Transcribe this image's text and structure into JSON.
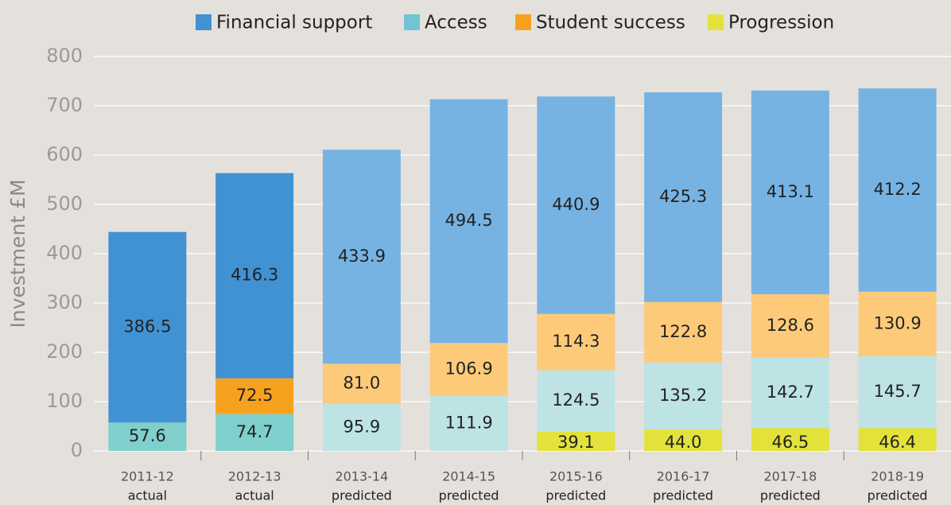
{
  "chart_data": {
    "type": "stacked_bar",
    "y_label": "Investment £M",
    "categories": [
      [
        "2011-12",
        "actual"
      ],
      [
        "2012-13",
        "actual"
      ],
      [
        "2013-14",
        "predicted"
      ],
      [
        "2014-15",
        "predicted"
      ],
      [
        "2015-16",
        "predicted"
      ],
      [
        "2016-17",
        "predicted"
      ],
      [
        "2017-18",
        "predicted"
      ],
      [
        "2018-19",
        "predicted"
      ]
    ],
    "series": [
      {
        "name": "Financial support",
        "color": "#4192d3",
        "bar_colors": [
          "#4192d3",
          "#4192d3",
          "#76b3e3",
          "#76b3e3",
          "#76b3e3",
          "#76b3e3",
          "#76b3e3",
          "#76b3e3"
        ],
        "values": [
          386.5,
          416.3,
          433.9,
          494.5,
          440.9,
          425.3,
          413.1,
          412.2
        ],
        "value_labels": [
          "386.5",
          "416.3",
          "433.9",
          "494.5",
          "440.9",
          "425.3",
          "413.1",
          "412.2"
        ]
      },
      {
        "name": "Access",
        "color": "#72c3d3",
        "bar_colors": [
          "#7fd0cc",
          "#7fd0cc",
          "#bde3e5",
          "#bde3e5",
          "#bde3e5",
          "#bde3e5",
          "#bde3e5",
          "#bde3e5"
        ],
        "values": [
          57.6,
          74.7,
          95.9,
          111.9,
          124.5,
          135.2,
          142.7,
          145.7
        ],
        "value_labels": [
          "57.6",
          "74.7",
          "95.9",
          "111.9",
          "124.5",
          "135.2",
          "142.7",
          "145.7"
        ]
      },
      {
        "name": "Student success",
        "color": "#f7a21e",
        "bar_colors": [
          "#f7a21e",
          "#f7a21e",
          "#fdca7a",
          "#fdca7a",
          "#fdca7a",
          "#fdca7a",
          "#fdca7a",
          "#fdca7a"
        ],
        "values": [
          null,
          72.5,
          81.0,
          106.9,
          114.3,
          122.8,
          128.6,
          130.9
        ],
        "value_labels": [
          null,
          "72.5",
          "81.0",
          "106.9",
          "114.3",
          "122.8",
          "128.6",
          "130.9"
        ]
      },
      {
        "name": "Progression",
        "color": "#e3e23a",
        "bar_colors": [
          "#e3e23a",
          "#e3e23a",
          "#e3e23a",
          "#e3e23a",
          "#e3e23a",
          "#e3e23a",
          "#e3e23a",
          "#e3e23a"
        ],
        "values": [
          null,
          null,
          null,
          null,
          39.1,
          44.0,
          46.5,
          46.4
        ],
        "value_labels": [
          null,
          null,
          null,
          null,
          "39.1",
          "44.0",
          "46.5",
          "46.4"
        ]
      }
    ],
    "stack_order": [
      3,
      1,
      2,
      0
    ],
    "ylim": [
      0,
      800
    ],
    "yticks": [
      0,
      100,
      200,
      300,
      400,
      500,
      600,
      700,
      800
    ],
    "grid": true
  }
}
